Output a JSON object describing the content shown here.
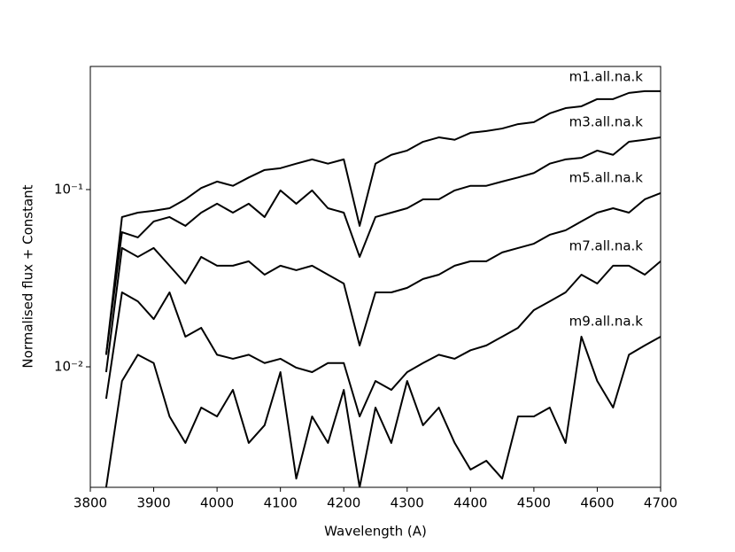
{
  "chart_data": {
    "type": "line",
    "xlabel": "Wavelength (A)",
    "ylabel": "Normalised flux + Constant",
    "xlim": [
      3800,
      4700
    ],
    "xticks": [
      3800,
      3900,
      4000,
      4100,
      4200,
      4300,
      4400,
      4500,
      4600,
      4700
    ],
    "ylim": [
      0.00209,
      0.495
    ],
    "yticks": [
      {
        "value": 0.01,
        "label": "10⁻²"
      },
      {
        "value": 0.1,
        "label": "10⁻¹"
      }
    ],
    "yscale": "log",
    "grid": false,
    "x": [
      3825,
      3850,
      3875,
      3900,
      3925,
      3950,
      3975,
      4000,
      4025,
      4050,
      4075,
      4100,
      4125,
      4150,
      4175,
      4200,
      4225,
      4250,
      4275,
      4300,
      4325,
      4350,
      4375,
      4400,
      4425,
      4450,
      4475,
      4500,
      4525,
      4550,
      4575,
      4600,
      4625,
      4650,
      4675,
      4700
    ],
    "series": [
      {
        "name": "m1.all.na.k",
        "color": "#000000",
        "values": [
          0.0117,
          0.07,
          0.0741,
          0.0759,
          0.0785,
          0.0881,
          0.102,
          0.111,
          0.105,
          0.117,
          0.129,
          0.132,
          0.14,
          0.148,
          0.14,
          0.148,
          0.0624,
          0.14,
          0.157,
          0.166,
          0.186,
          0.197,
          0.191,
          0.209,
          0.214,
          0.221,
          0.234,
          0.24,
          0.269,
          0.288,
          0.295,
          0.324,
          0.324,
          0.351,
          0.359,
          0.359
        ]
      },
      {
        "name": "m3.all.na.k",
        "color": "#000000",
        "values": [
          0.0117,
          0.0575,
          0.0537,
          0.0661,
          0.07,
          0.0624,
          0.0741,
          0.0832,
          0.0741,
          0.0832,
          0.07,
          0.0989,
          0.0832,
          0.0989,
          0.0785,
          0.0741,
          0.0417,
          0.07,
          0.0741,
          0.0785,
          0.0881,
          0.0881,
          0.0989,
          0.105,
          0.105,
          0.111,
          0.117,
          0.124,
          0.14,
          0.148,
          0.151,
          0.166,
          0.157,
          0.186,
          0.191,
          0.197
        ]
      },
      {
        "name": "m5.all.na.k",
        "color": "#000000",
        "values": [
          0.00933,
          0.0468,
          0.0417,
          0.0468,
          0.0372,
          0.0295,
          0.0417,
          0.0372,
          0.0372,
          0.0394,
          0.0331,
          0.0372,
          0.0351,
          0.0372,
          0.0331,
          0.0295,
          0.0132,
          0.0263,
          0.0263,
          0.0279,
          0.0313,
          0.0331,
          0.0372,
          0.0394,
          0.0394,
          0.0442,
          0.0468,
          0.0495,
          0.0556,
          0.0589,
          0.0661,
          0.0741,
          0.0785,
          0.0741,
          0.0881,
          0.0955
        ]
      },
      {
        "name": "m7.all.na.k",
        "color": "#000000",
        "values": [
          0.00661,
          0.0263,
          0.0234,
          0.0186,
          0.0263,
          0.0148,
          0.0166,
          0.0117,
          0.0111,
          0.0117,
          0.0105,
          0.0111,
          0.00989,
          0.00933,
          0.0105,
          0.0105,
          0.00525,
          0.00832,
          0.00741,
          0.00933,
          0.0105,
          0.0117,
          0.0111,
          0.0124,
          0.0132,
          0.0148,
          0.0166,
          0.0209,
          0.0234,
          0.0263,
          0.0331,
          0.0295,
          0.0372,
          0.0372,
          0.0331,
          0.0394
        ]
      },
      {
        "name": "m9.all.na.k",
        "color": "#000000",
        "values": [
          0.00209,
          0.00832,
          0.0117,
          0.0105,
          0.00525,
          0.00372,
          0.00589,
          0.00525,
          0.00741,
          0.00372,
          0.00468,
          0.00933,
          0.00234,
          0.00525,
          0.00372,
          0.00741,
          0.00209,
          0.00589,
          0.00372,
          0.00832,
          0.00468,
          0.00589,
          0.00372,
          0.00263,
          0.00295,
          0.00234,
          0.00525,
          0.00525,
          0.00589,
          0.00372,
          0.0148,
          0.00832,
          0.00589,
          0.0117,
          0.0132,
          0.0148
        ]
      }
    ]
  }
}
